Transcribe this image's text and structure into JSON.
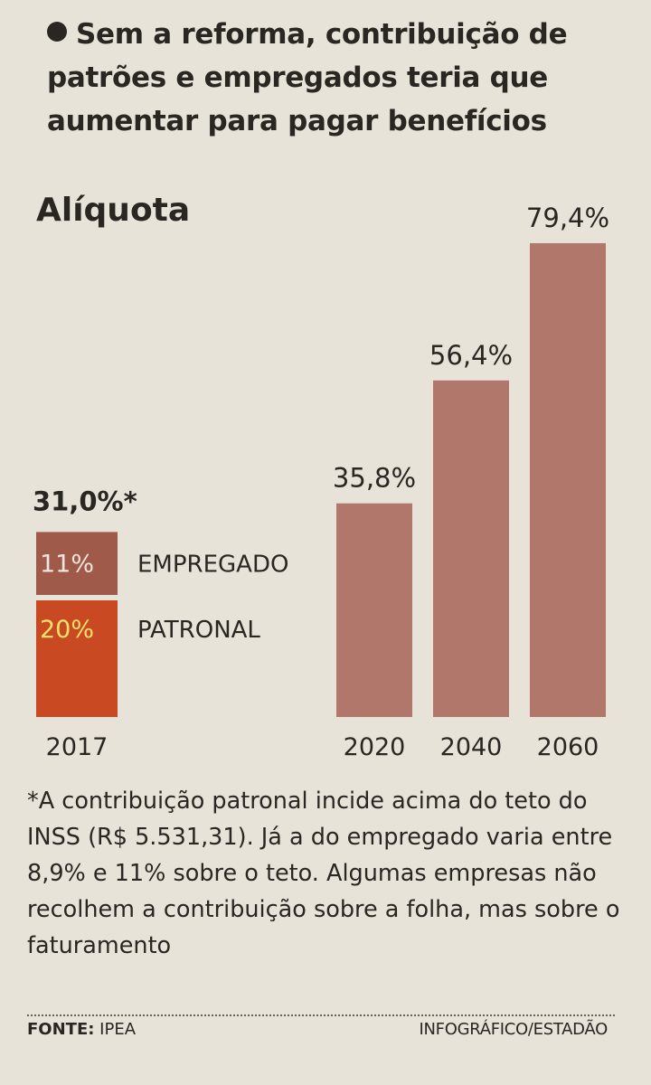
{
  "headline": "Sem a reforma, contribuição de patrões e empregados teria que aumentar para pagar benefícios",
  "chart_data": {
    "type": "bar",
    "title": "Alíquota",
    "unit": "%",
    "stacked_bar": {
      "category": "2017",
      "total_label": "31,0%*",
      "total": 31.0,
      "segments": [
        {
          "name": "EMPREGADO",
          "value": 11,
          "label": "11%",
          "color": "#a05a4a"
        },
        {
          "name": "PATRONAL",
          "value": 20,
          "label": "20%",
          "color": "#c94a22"
        }
      ]
    },
    "categories": [
      "2020",
      "2040",
      "2060"
    ],
    "values": [
      35.8,
      56.4,
      79.4
    ],
    "value_labels": [
      "35,8%",
      "56,4%",
      "79,4%"
    ],
    "bar_color": "#b0776a",
    "ylim": [
      0,
      80
    ]
  },
  "footnote": "*A contribuição patronal incide acima do teto do INSS (R$ 5.531,31). Já a do empregado varia entre 8,9% e 11% sobre o teto. Algumas empresas não recolhem a contribuição sobre a folha, mas sobre o faturamento",
  "source": {
    "label": "FONTE:",
    "value": "IPEA"
  },
  "credit": "INFOGRÁFICO/ESTADÃO"
}
